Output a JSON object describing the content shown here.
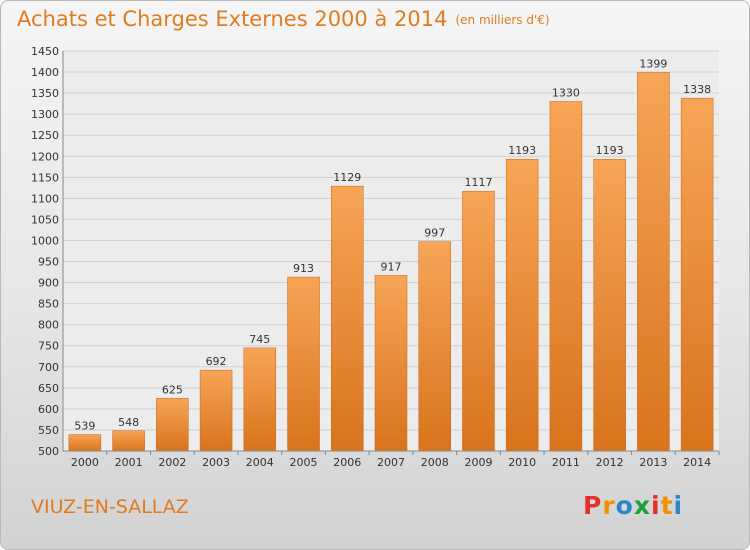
{
  "header": {
    "title": "Achats et Charges Externes 2000 à 2014",
    "subtitle": "(en milliers d'€)"
  },
  "footer": {
    "commune": "VIUZ-EN-SALLAZ",
    "logo_letters": [
      "P",
      "r",
      "o",
      "x",
      "i",
      "t",
      "i"
    ],
    "logo_colors": [
      "#e2302b",
      "#f29100",
      "#2a87c8",
      "#1aa23a",
      "#e2302b",
      "#f29100",
      "#2a87c8"
    ]
  },
  "chart_data": {
    "type": "bar",
    "title": "Achats et Charges Externes 2000 à 2014",
    "categories": [
      "2000",
      "2001",
      "2002",
      "2003",
      "2004",
      "2005",
      "2006",
      "2007",
      "2008",
      "2009",
      "2010",
      "2011",
      "2012",
      "2013",
      "2014"
    ],
    "values": [
      539,
      548,
      625,
      692,
      745,
      913,
      1129,
      917,
      997,
      1117,
      1193,
      1330,
      1193,
      1399,
      1338
    ],
    "ylim": [
      500,
      1450
    ],
    "yticks": [
      500,
      550,
      600,
      650,
      700,
      750,
      800,
      850,
      900,
      950,
      1000,
      1050,
      1100,
      1150,
      1200,
      1250,
      1300,
      1350,
      1400,
      1450
    ],
    "grid": true,
    "bar_color": "#f08a2c"
  }
}
